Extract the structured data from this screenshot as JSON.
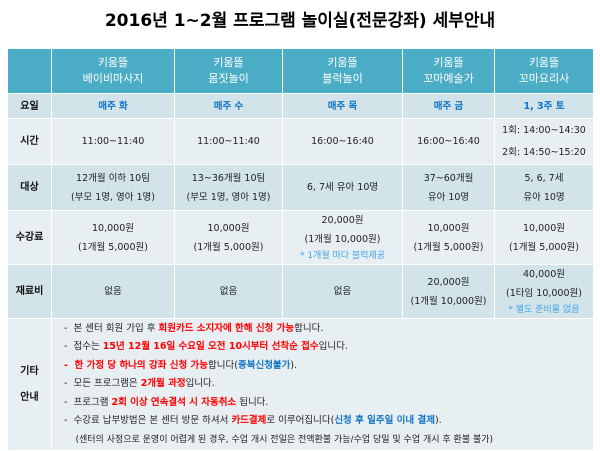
{
  "title": "2016년 1~2월 프로그램 놀이실(전문강좌) 세부안내",
  "columns": [
    {
      "l1": "키움뜰",
      "l2": "베이비마사지"
    },
    {
      "l1": "키움뜰",
      "l2": "몸짓놀이"
    },
    {
      "l1": "키움뜰",
      "l2": "블럭놀이"
    },
    {
      "l1": "키움뜰",
      "l2": "꼬마예술가"
    },
    {
      "l1": "키움뜰",
      "l2": "꼬마요리사"
    }
  ],
  "rows": {
    "day": {
      "label": "요일",
      "values": [
        "매주 화",
        "매주 수",
        "매주 목",
        "매주 금",
        "1, 3주 토"
      ]
    },
    "time": {
      "label": "시간",
      "values": [
        [
          "11:00~11:40"
        ],
        [
          "11:00~11:40"
        ],
        [
          "16:00~16:40"
        ],
        [
          "16:00~16:40"
        ],
        [
          "1회: 14:00~14:30",
          "2회: 14:50~15:20"
        ]
      ]
    },
    "target": {
      "label": "대상",
      "values": [
        [
          "12개월 이하 10팀",
          "(부모 1명, 영아 1명)"
        ],
        [
          "13~36개월 10팀",
          "(부모 1명, 영아 1명)"
        ],
        [
          "6, 7세 유아 10명"
        ],
        [
          "37~60개월",
          "유아 10명"
        ],
        [
          "5, 6, 7세",
          "유아 10명"
        ]
      ]
    },
    "fee": {
      "label": "수강료",
      "values": [
        [
          "10,000원",
          "(1개월 5,000원)"
        ],
        [
          "10,000원",
          "(1개월 5,000원)"
        ],
        [
          "20,000원",
          "(1개월 10,000원)"
        ],
        [
          "10,000원",
          "(1개월 5,000원)"
        ],
        [
          "10,000원",
          "(1개월 5,000원)"
        ]
      ],
      "notes": [
        "",
        "",
        "* 1개월 마다 블럭제공",
        "",
        ""
      ]
    },
    "material": {
      "label": "재료비",
      "values": [
        [
          "없음"
        ],
        [
          "없음"
        ],
        [
          "없음"
        ],
        [
          "20,000원",
          "(1개월 10,000원)"
        ],
        [
          "40,000원",
          "(1타임 10,000원)"
        ]
      ],
      "notes": [
        "",
        "",
        "",
        "",
        "* 별도 준비물 없음"
      ]
    }
  },
  "info": {
    "label1": "기타",
    "label2": "안내",
    "lines": [
      [
        [
          "n",
          "-  본 센터 회원 가입 후 "
        ],
        [
          "r",
          "회원카드 소지자에 한해 신청 가능"
        ],
        [
          "n",
          "합니다."
        ]
      ],
      [
        [
          "n",
          "-  접수는 "
        ],
        [
          "r",
          "15년 12월 16일 수요일 오전 10시부터 선착순 접수"
        ],
        [
          "n",
          "입니다."
        ]
      ],
      [
        [
          "r",
          "-  한 가정 당 하나의 강좌 신청 가능"
        ],
        [
          "n",
          "합니다("
        ],
        [
          "b",
          "중복신청불가"
        ],
        [
          "n",
          ")."
        ]
      ],
      [
        [
          "n",
          "-  모든 프로그램은 "
        ],
        [
          "r",
          "2개월 과정"
        ],
        [
          "n",
          "입니다."
        ]
      ],
      [
        [
          "n",
          "-  프로그램 "
        ],
        [
          "r",
          "2회 이상 연속결석 시 자동취소"
        ],
        [
          "n",
          " 됩니다."
        ]
      ],
      [
        [
          "n",
          "-  수강료 납부방법은 본 센터 방문 하셔서 "
        ],
        [
          "r",
          "카드결제"
        ],
        [
          "n",
          "로 이루어집니다("
        ],
        [
          "b",
          "신청 후 일주일 이내 결제"
        ],
        [
          "n",
          ")."
        ]
      ],
      [
        [
          "n",
          "    (센터의 사정으로 운영이 어렵게 된 경우, 수업 개시 전일은 전액환불 가능/수업 당일 및 수업 개시 후 환불 불가)"
        ]
      ]
    ]
  },
  "colors": {
    "header": "#4bacc6",
    "blue": "#1274c4",
    "red": "#ff0000",
    "note": "#45a5e6"
  }
}
